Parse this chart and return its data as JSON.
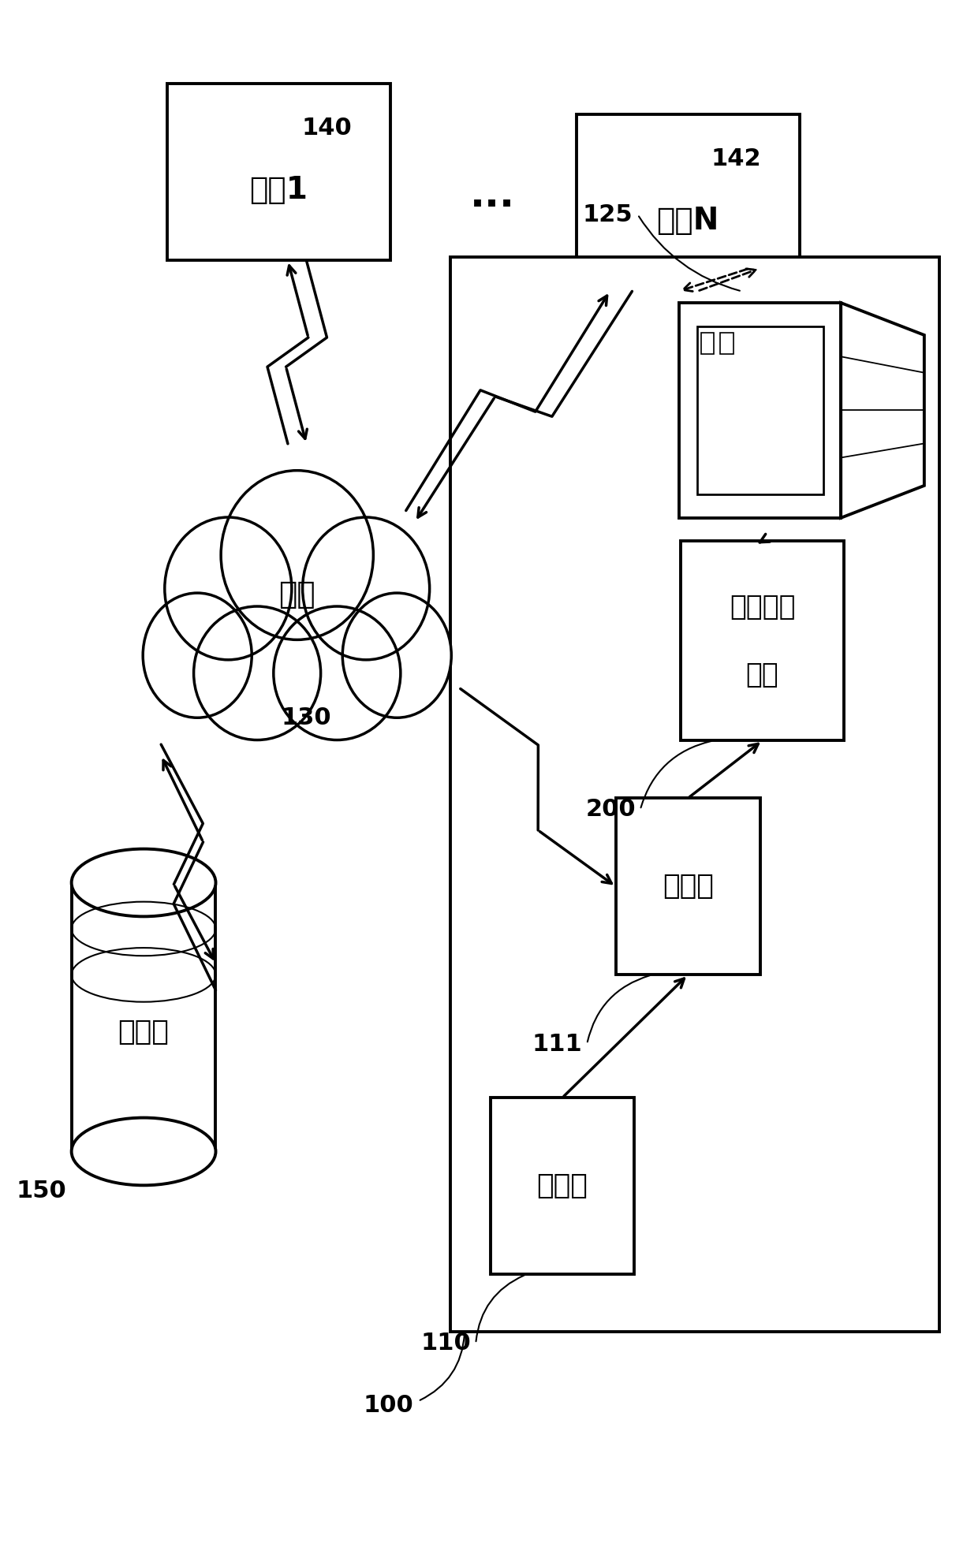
{
  "bg_color": "#ffffff",
  "line_color": "#000000",
  "figsize": [
    12.4,
    19.76
  ],
  "dpi": 100,
  "labels": {
    "user1": "用户1",
    "user1_ref": "140",
    "userN": "用户N",
    "userN_ref": "142",
    "network": "网络",
    "network_ref": "130",
    "database": "数据库",
    "database_ref": "150",
    "stainer": "染色机",
    "stainer_ref": "110",
    "scanner": "扫描仪",
    "scanner_ref": "111",
    "workflow_line1": "工作流程",
    "workflow_line2": "模块",
    "workflow_ref": "200",
    "display_ref": "125",
    "system_ref": "100",
    "dots": "..."
  },
  "font_sizes": {
    "label": 28,
    "ref": 22,
    "dots": 36
  }
}
